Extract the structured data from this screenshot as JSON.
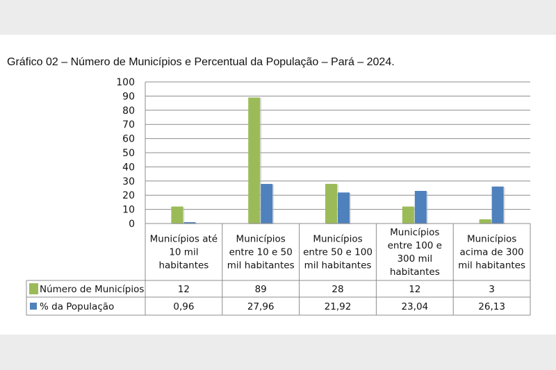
{
  "chart_data": {
    "type": "bar",
    "title": "Gráfico 02 – Número de Municípios e Percentual da População – Pará – 2024.",
    "categories": [
      [
        "Municípios até",
        "10 mil",
        "habitantes"
      ],
      [
        "Municípios",
        "entre 10 e 50",
        "mil habitantes"
      ],
      [
        "Municípios",
        "entre 50 e 100",
        "mil habitantes"
      ],
      [
        "Municípios",
        "entre 100 e",
        "300 mil",
        "habitantes"
      ],
      [
        "Municípios",
        "acima de 300",
        "mil habitantes"
      ]
    ],
    "series": [
      {
        "name": "Número de Municípios",
        "color": "#9bbb59",
        "values": [
          12,
          89,
          28,
          12,
          3
        ],
        "labels": [
          "12",
          "89",
          "28",
          "12",
          "3"
        ]
      },
      {
        "name": "% da População",
        "color": "#4f81bd",
        "values": [
          0.96,
          27.96,
          21.92,
          23.04,
          26.13
        ],
        "labels": [
          "0,96",
          "27,96",
          "21,92",
          "23,04",
          "26,13"
        ]
      }
    ],
    "ylim": [
      0,
      100
    ],
    "yticks": [
      0,
      10,
      20,
      30,
      40,
      50,
      60,
      70,
      80,
      90,
      100
    ],
    "grid": true,
    "legend": "data-table"
  }
}
